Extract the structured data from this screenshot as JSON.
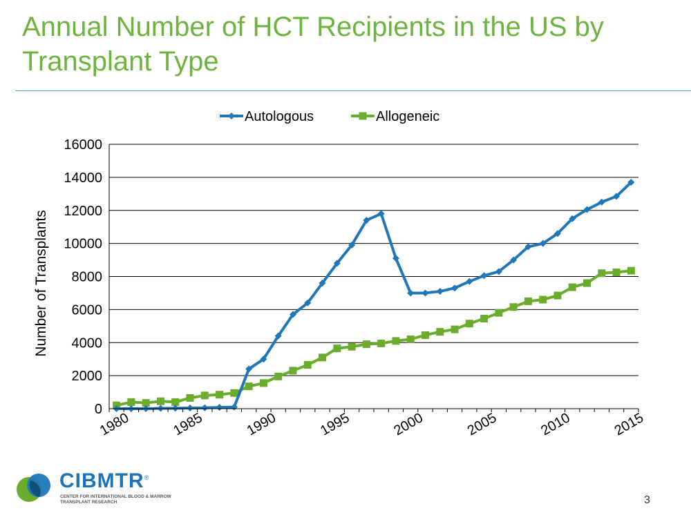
{
  "slide": {
    "title": "Annual Number of HCT Recipients in the US by Transplant Type",
    "page_number": "3"
  },
  "logo": {
    "name": "CIBMTR",
    "registered_mark": "®",
    "subtitle": "CENTER FOR INTERNATIONAL BLOOD & MARROW TRANSPLANT RESEARCH"
  },
  "colors": {
    "title": "#6db33f",
    "autologous": "#1f77b8",
    "allogeneic": "#6aad2d",
    "grid": "#000000"
  },
  "chart_data": {
    "type": "line",
    "title": "",
    "xlabel": "",
    "ylabel": "Number of Transplants",
    "x": [
      1980,
      1981,
      1982,
      1983,
      1984,
      1985,
      1986,
      1987,
      1988,
      1989,
      1990,
      1991,
      1992,
      1993,
      1994,
      1995,
      1996,
      1997,
      1998,
      1999,
      2000,
      2001,
      2002,
      2003,
      2004,
      2005,
      2006,
      2007,
      2008,
      2009,
      2010,
      2011,
      2012,
      2013,
      2014,
      2015
    ],
    "xticks": [
      1980,
      1985,
      1990,
      1995,
      2000,
      2005,
      2010,
      2015
    ],
    "ylim": [
      0,
      16000
    ],
    "yticks": [
      0,
      2000,
      4000,
      6000,
      8000,
      10000,
      12000,
      14000,
      16000
    ],
    "grid": "horizontal",
    "legend": "top-center",
    "series": [
      {
        "name": "Autologous",
        "marker": "diamond",
        "values": [
          0,
          0,
          0,
          20,
          30,
          40,
          50,
          80,
          100,
          2400,
          3000,
          4400,
          5700,
          6400,
          7600,
          8800,
          9900,
          11400,
          11800,
          9100,
          7000,
          7000,
          7100,
          7300,
          7700,
          8050,
          8300,
          9000,
          9800,
          10000,
          10600,
          11500,
          12050,
          12500,
          12850,
          13700
        ]
      },
      {
        "name": "Allogeneic",
        "marker": "square",
        "values": [
          200,
          400,
          350,
          450,
          400,
          650,
          800,
          850,
          950,
          1350,
          1550,
          1950,
          2300,
          2650,
          3100,
          3650,
          3750,
          3900,
          3950,
          4100,
          4200,
          4450,
          4650,
          4800,
          5150,
          5450,
          5800,
          6150,
          6500,
          6600,
          6850,
          7350,
          7600,
          8200,
          8250,
          8350
        ]
      }
    ]
  }
}
